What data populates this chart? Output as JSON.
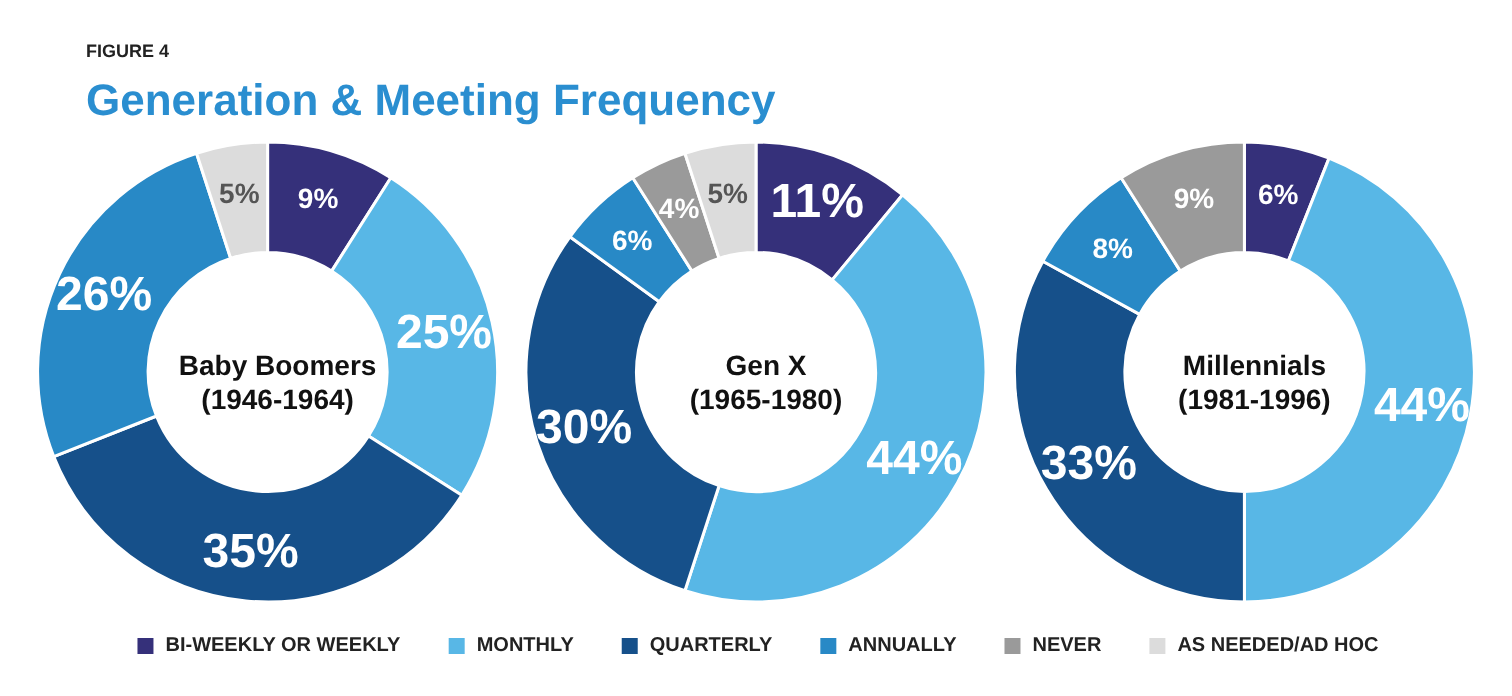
{
  "chart_data": {
    "type": "donut",
    "title": "Generation & Meeting Frequency",
    "annotations": [
      "FIGURE 4"
    ],
    "categories": [
      "BI-WEEKLY OR WEEKLY",
      "MONTHLY",
      "QUARTERLY",
      "ANNUALLY",
      "NEVER",
      "AS NEEDED/AD HOC"
    ],
    "colors": [
      "#35307a",
      "#58b7e6",
      "#16508a",
      "#2889c6",
      "#9a9a9a",
      "#dcdcdc"
    ],
    "legend": "bottom",
    "series": [
      {
        "name": "Baby Boomers (1946-1964)",
        "values": [
          9,
          25,
          35,
          26,
          null,
          5
        ],
        "value_labels": [
          "9%",
          "25%",
          "35%",
          "26%",
          null,
          "5%"
        ]
      },
      {
        "name": "Gen X (1965-1980)",
        "values": [
          11,
          44,
          30,
          6,
          4,
          5
        ],
        "value_labels": [
          "11%",
          "44%",
          "30%",
          "6%",
          "4%",
          "5%"
        ]
      },
      {
        "name": "Millennials (1981-1996)",
        "values": [
          6,
          44,
          33,
          8,
          9,
          null
        ],
        "value_labels": [
          "6%",
          "44%",
          "33%",
          "8%",
          "9%",
          null
        ]
      }
    ]
  }
}
